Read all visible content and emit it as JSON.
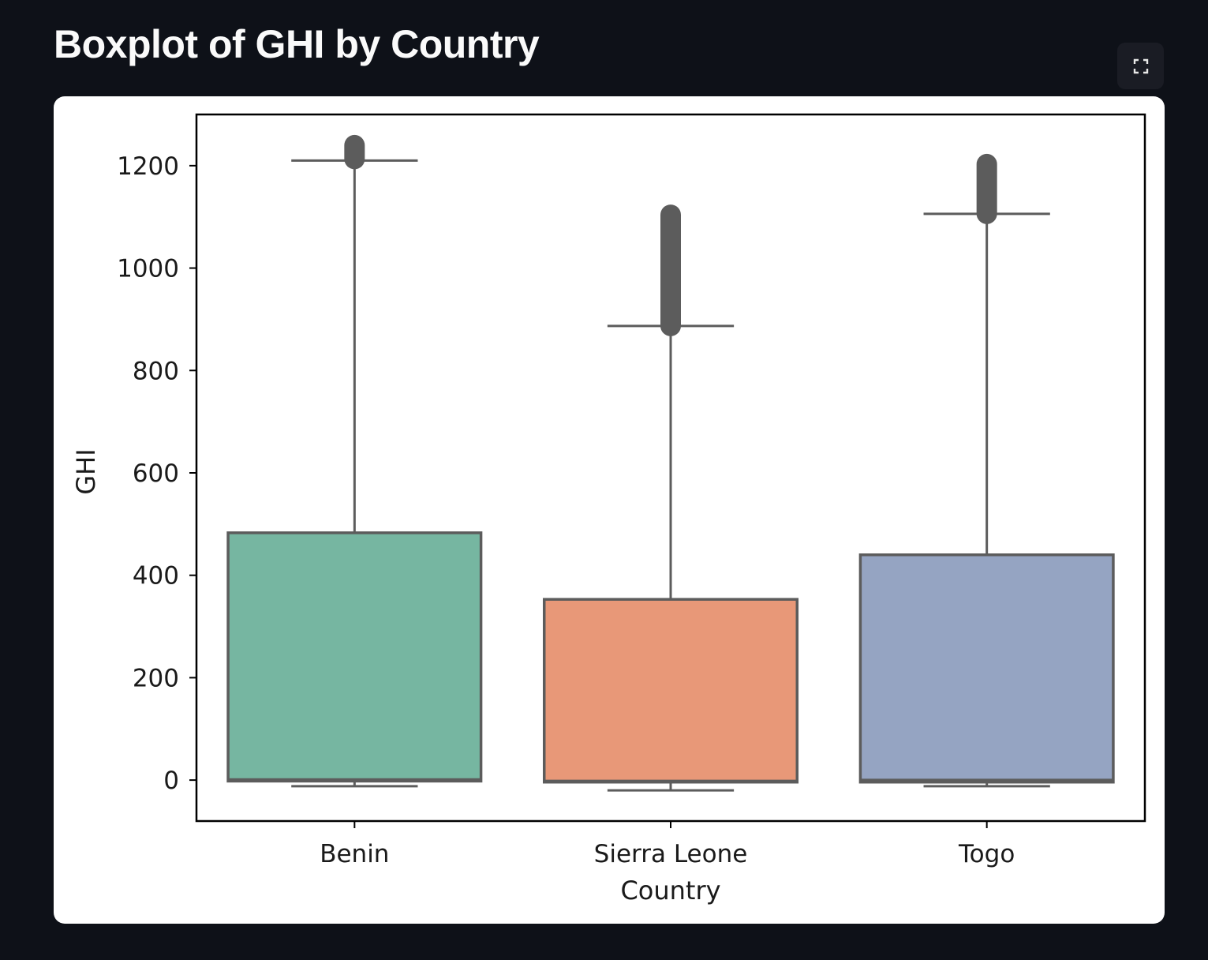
{
  "page": {
    "title": "Boxplot of GHI by Country"
  },
  "toolbar": {
    "fullscreen_icon": "fullscreen-icon"
  },
  "chart_data": {
    "type": "box",
    "xlabel": "Country",
    "ylabel": "GHI",
    "ylim": [
      -80,
      1300
    ],
    "yticks": [
      0,
      200,
      400,
      600,
      800,
      1000,
      1200
    ],
    "ytick_labels": [
      "0",
      "200",
      "400",
      "600",
      "800",
      "1000",
      "1200"
    ],
    "grid": false,
    "legend": "none",
    "categories": [
      "Benin",
      "Sierra Leone",
      "Togo"
    ],
    "boxes": [
      {
        "category": "Benin",
        "whisker_low": -12,
        "q1": -2,
        "median": 1,
        "q3": 483,
        "whisker_high": 1210,
        "outliers_range": [
          1213,
          1240
        ],
        "color": "#76b6a1"
      },
      {
        "category": "Sierra Leone",
        "whisker_low": -20,
        "q1": -4,
        "median": -2,
        "q3": 353,
        "whisker_high": 887,
        "outliers_range": [
          887,
          1104
        ],
        "color": "#e89878"
      },
      {
        "category": "Togo",
        "whisker_low": -12,
        "q1": -4,
        "median": 0,
        "q3": 440,
        "whisker_high": 1106,
        "outliers_range": [
          1106,
          1203
        ],
        "color": "#95a4c2"
      }
    ],
    "edge_color": "#5c5c5c"
  }
}
